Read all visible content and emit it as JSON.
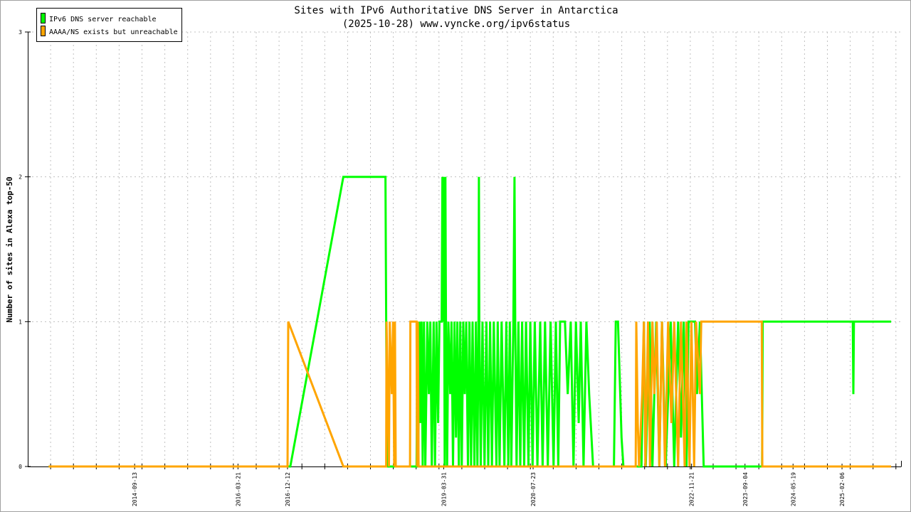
{
  "chart_data": {
    "type": "line",
    "title": "Sites with IPv6 Authoritative DNS Server in Antarctica",
    "subtitle": "(2025-10-28) www.vyncke.org/ipv6status",
    "xlabel": "",
    "ylabel": "Number of sites in Alexa top-50",
    "xlim": [
      "2013-02-16",
      "2025-12-20"
    ],
    "ylim": [
      0,
      3
    ],
    "yticks": [
      "0",
      "1",
      "2",
      "3"
    ],
    "xtick_labels": [
      "2014-09-13",
      "2016-03-21",
      "2016-12-12",
      "2019-03-31",
      "2020-07-23",
      "2022-11-21",
      "2023-09-04",
      "2024-05-19",
      "2025-02-06"
    ],
    "grid": true,
    "legend": "top-left",
    "series": [
      {
        "name": "IPv6 DNS server reachable",
        "color": "#00ff00",
        "points": [
          [
            "2013-06-08",
            0
          ],
          [
            "2016-12-27",
            0
          ],
          [
            "2017-10-08",
            2
          ],
          [
            "2018-05-22",
            2
          ],
          [
            "2018-05-26",
            1
          ],
          [
            "2018-05-30",
            0
          ],
          [
            "2018-11-05",
            0
          ],
          [
            "2018-11-10",
            1
          ],
          [
            "2018-11-14",
            0
          ],
          [
            "2018-11-20",
            1
          ],
          [
            "2018-11-25",
            0.3
          ],
          [
            "2018-12-02",
            1
          ],
          [
            "2018-12-08",
            0
          ],
          [
            "2018-12-15",
            1
          ],
          [
            "2018-12-22",
            0
          ],
          [
            "2019-01-02",
            1
          ],
          [
            "2019-01-10",
            0.5
          ],
          [
            "2019-01-18",
            1
          ],
          [
            "2019-01-26",
            0
          ],
          [
            "2019-02-05",
            1
          ],
          [
            "2019-02-12",
            0
          ],
          [
            "2019-02-20",
            1
          ],
          [
            "2019-03-01",
            0.3
          ],
          [
            "2019-03-08",
            1
          ],
          [
            "2019-03-20",
            1
          ],
          [
            "2019-03-24",
            2
          ],
          [
            "2019-03-28",
            1
          ],
          [
            "2019-04-01",
            2
          ],
          [
            "2019-04-05",
            0
          ],
          [
            "2019-04-09",
            2
          ],
          [
            "2019-04-12",
            1
          ],
          [
            "2019-04-18",
            0
          ],
          [
            "2019-04-25",
            1
          ],
          [
            "2019-05-05",
            0.5
          ],
          [
            "2019-05-12",
            1
          ],
          [
            "2019-05-20",
            0
          ],
          [
            "2019-05-28",
            1
          ],
          [
            "2019-06-05",
            0.2
          ],
          [
            "2019-06-12",
            1
          ],
          [
            "2019-06-20",
            0
          ],
          [
            "2019-06-28",
            1
          ],
          [
            "2019-07-06",
            0
          ],
          [
            "2019-07-14",
            1
          ],
          [
            "2019-07-22",
            0.5
          ],
          [
            "2019-07-30",
            1
          ],
          [
            "2019-08-08",
            0
          ],
          [
            "2019-08-16",
            1
          ],
          [
            "2019-08-25",
            0
          ],
          [
            "2019-09-02",
            1
          ],
          [
            "2019-09-12",
            0
          ],
          [
            "2019-09-20",
            1
          ],
          [
            "2019-09-28",
            0
          ],
          [
            "2019-10-04",
            1
          ],
          [
            "2019-10-06",
            2
          ],
          [
            "2019-10-08",
            1
          ],
          [
            "2019-10-16",
            0
          ],
          [
            "2019-10-25",
            1
          ],
          [
            "2019-11-05",
            0
          ],
          [
            "2019-11-15",
            1
          ],
          [
            "2019-11-25",
            0
          ],
          [
            "2019-12-05",
            1
          ],
          [
            "2019-12-15",
            0
          ],
          [
            "2019-12-25",
            1
          ],
          [
            "2020-01-08",
            0
          ],
          [
            "2020-01-15",
            1
          ],
          [
            "2020-01-25",
            0
          ],
          [
            "2020-02-05",
            1
          ],
          [
            "2020-02-20",
            0
          ],
          [
            "2020-03-01",
            1
          ],
          [
            "2020-03-12",
            0
          ],
          [
            "2020-03-20",
            1
          ],
          [
            "2020-03-28",
            0
          ],
          [
            "2020-04-08",
            1
          ],
          [
            "2020-04-14",
            2
          ],
          [
            "2020-04-18",
            1
          ],
          [
            "2020-04-25",
            0
          ],
          [
            "2020-05-05",
            1
          ],
          [
            "2020-05-15",
            0
          ],
          [
            "2020-05-25",
            1
          ],
          [
            "2020-06-05",
            0
          ],
          [
            "2020-06-15",
            1
          ],
          [
            "2020-06-28",
            0
          ],
          [
            "2020-07-08",
            1
          ],
          [
            "2020-07-20",
            0
          ],
          [
            "2020-08-01",
            1
          ],
          [
            "2020-08-15",
            0
          ],
          [
            "2020-08-30",
            1
          ],
          [
            "2020-09-12",
            0
          ],
          [
            "2020-09-25",
            1
          ],
          [
            "2020-10-10",
            0
          ],
          [
            "2020-10-25",
            1
          ],
          [
            "2020-11-10",
            0
          ],
          [
            "2020-11-22",
            1
          ],
          [
            "2020-12-05",
            0
          ],
          [
            "2020-12-15",
            1
          ],
          [
            "2021-01-10",
            1
          ],
          [
            "2021-01-25",
            0.5
          ],
          [
            "2021-02-10",
            1
          ],
          [
            "2021-02-25",
            0
          ],
          [
            "2021-03-10",
            1
          ],
          [
            "2021-03-25",
            0.3
          ],
          [
            "2021-04-05",
            1
          ],
          [
            "2021-04-20",
            0
          ],
          [
            "2021-05-05",
            1
          ],
          [
            "2021-05-20",
            0.5
          ],
          [
            "2021-06-10",
            0
          ],
          [
            "2021-09-30",
            0
          ],
          [
            "2021-10-10",
            1
          ],
          [
            "2021-10-22",
            1
          ],
          [
            "2021-11-10",
            0.2
          ],
          [
            "2021-11-20",
            0
          ],
          [
            "2022-02-25",
            0
          ],
          [
            "2022-03-10",
            1
          ],
          [
            "2022-03-20",
            0
          ],
          [
            "2022-04-10",
            1
          ],
          [
            "2022-04-25",
            0
          ],
          [
            "2022-05-15",
            1
          ],
          [
            "2022-06-01",
            0
          ],
          [
            "2022-06-15",
            1
          ],
          [
            "2022-07-05",
            0
          ],
          [
            "2022-08-01",
            1
          ],
          [
            "2022-08-20",
            0
          ],
          [
            "2022-09-10",
            1
          ],
          [
            "2022-09-25",
            0.2
          ],
          [
            "2022-10-10",
            1
          ],
          [
            "2022-10-25",
            0
          ],
          [
            "2022-11-05",
            1
          ],
          [
            "2022-12-10",
            1
          ],
          [
            "2022-12-20",
            0.5
          ],
          [
            "2023-01-05",
            1
          ],
          [
            "2023-01-25",
            0
          ],
          [
            "2023-12-05",
            0
          ],
          [
            "2023-12-08",
            1
          ],
          [
            "2025-04-05",
            1
          ],
          [
            "2025-04-08",
            0.5
          ],
          [
            "2025-04-11",
            1
          ],
          [
            "2025-10-28",
            1
          ]
        ]
      },
      {
        "name": "AAAA/NS exists but unreachable",
        "color": "#ffa500",
        "points": [
          [
            "2013-06-08",
            0
          ],
          [
            "2016-12-12",
            0
          ],
          [
            "2016-12-16",
            1
          ],
          [
            "2017-10-08",
            0
          ],
          [
            "2018-05-26",
            0
          ],
          [
            "2018-05-28",
            1
          ],
          [
            "2018-06-10",
            0
          ],
          [
            "2018-06-14",
            1
          ],
          [
            "2018-06-25",
            0.5
          ],
          [
            "2018-07-02",
            1
          ],
          [
            "2018-07-08",
            0
          ],
          [
            "2018-07-12",
            1
          ],
          [
            "2018-07-16",
            0
          ],
          [
            "2018-10-01",
            0
          ],
          [
            "2018-10-03",
            1
          ],
          [
            "2018-11-05",
            1
          ],
          [
            "2018-11-08",
            0
          ],
          [
            "2018-11-12",
            1
          ],
          [
            "2018-11-16",
            0
          ],
          [
            "2022-01-25",
            0
          ],
          [
            "2022-01-28",
            1
          ],
          [
            "2022-02-05",
            0.3
          ],
          [
            "2022-02-12",
            0
          ],
          [
            "2022-03-01",
            0.5
          ],
          [
            "2022-03-10",
            1
          ],
          [
            "2022-03-18",
            0
          ],
          [
            "2022-04-01",
            1
          ],
          [
            "2022-04-12",
            0
          ],
          [
            "2022-04-25",
            1
          ],
          [
            "2022-05-05",
            0.5
          ],
          [
            "2022-05-18",
            1
          ],
          [
            "2022-06-01",
            0
          ],
          [
            "2022-06-15",
            1
          ],
          [
            "2022-07-01",
            0
          ],
          [
            "2022-07-18",
            1
          ],
          [
            "2022-08-05",
            0.3
          ],
          [
            "2022-08-20",
            1
          ],
          [
            "2022-09-10",
            0
          ],
          [
            "2022-09-25",
            1
          ],
          [
            "2022-10-15",
            0
          ],
          [
            "2022-10-25",
            1
          ],
          [
            "2022-11-10",
            0
          ],
          [
            "2022-11-20",
            1
          ],
          [
            "2022-12-05",
            0
          ],
          [
            "2022-12-15",
            1
          ],
          [
            "2023-01-05",
            0.5
          ],
          [
            "2023-01-12",
            1
          ],
          [
            "2023-12-03",
            1
          ],
          [
            "2023-12-06",
            0
          ],
          [
            "2025-10-28",
            0
          ]
        ]
      }
    ]
  }
}
